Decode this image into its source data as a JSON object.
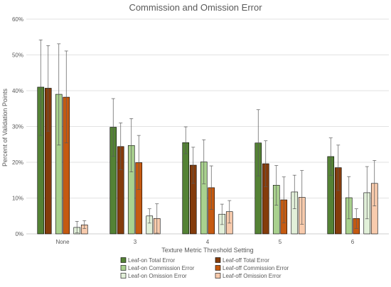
{
  "chart_data": {
    "type": "bar",
    "title": "Commission and Omission Error",
    "xlabel": "Texture Metric Threshold Setting",
    "ylabel": "Percent of Validation Points",
    "ylim": [
      0,
      60
    ],
    "yticks": [
      "0%",
      "10%",
      "20%",
      "30%",
      "40%",
      "50%",
      "60%"
    ],
    "categories": [
      "None",
      "3",
      "4",
      "5",
      "6"
    ],
    "grid": "horizontal",
    "legend_position": "bottom",
    "series": [
      {
        "name": "Leaf-on Total Error",
        "color": "#548235",
        "values": [
          41,
          29.8,
          25.5,
          25.4,
          21.6
        ],
        "err_low": [
          27.5,
          21.7,
          22.4,
          16.2,
          16.3
        ],
        "err_high": [
          54.2,
          37.8,
          29.9,
          34.7,
          26.8
        ]
      },
      {
        "name": "Leaf-off Total Error",
        "color": "#843C0C",
        "values": [
          40.7,
          24.4,
          19.2,
          19.6,
          18.5
        ],
        "err_low": [
          28.7,
          17.9,
          14.1,
          13.2,
          12.1
        ],
        "err_high": [
          52.6,
          31,
          24.2,
          26,
          24.8
        ]
      },
      {
        "name": "Leaf-on Commission Error",
        "color": "#A9D18E",
        "values": [
          39,
          24.7,
          20.1,
          13.6,
          10.1
        ],
        "err_low": [
          24.8,
          17.3,
          14,
          8,
          4.2
        ],
        "err_high": [
          53.1,
          32.2,
          26.3,
          19.1,
          16
        ]
      },
      {
        "name": "Leaf-off Commission Error",
        "color": "#C55A11",
        "values": [
          38.2,
          19.9,
          12.9,
          9.5,
          4.3
        ],
        "err_low": [
          25.4,
          12.4,
          6.8,
          3.1,
          1.5
        ],
        "err_high": [
          51.1,
          27.5,
          19,
          15.9,
          7
        ]
      },
      {
        "name": "Leaf-on Omission Error",
        "color": "#E2F0D9",
        "values": [
          1.8,
          5,
          5.5,
          11.7,
          11.5
        ],
        "err_low": [
          0.3,
          3,
          2.6,
          7,
          4.2
        ],
        "err_high": [
          3.5,
          7,
          8.3,
          16.4,
          18.8
        ]
      },
      {
        "name": "Leaf-off Omission Error",
        "color": "#F8CBAD",
        "values": [
          2.5,
          4.3,
          6.2,
          10.2,
          14.1
        ],
        "err_low": [
          1.5,
          0.2,
          3,
          2.7,
          7.8
        ],
        "err_high": [
          3.7,
          8.4,
          9.3,
          17.7,
          20.5
        ]
      }
    ]
  }
}
